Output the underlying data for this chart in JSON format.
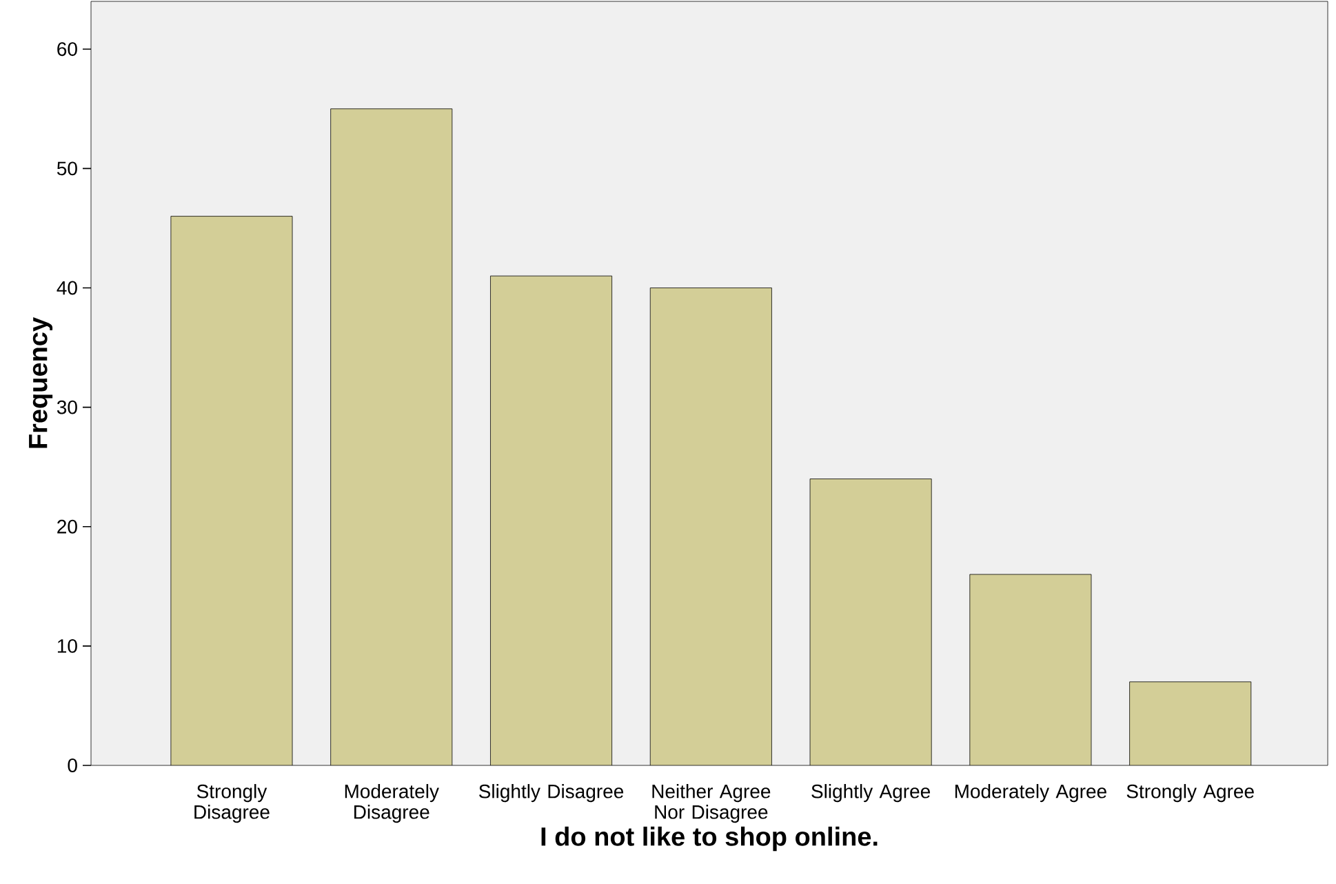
{
  "chart_data": {
    "type": "bar",
    "xlabel": "I do not like to shop online.",
    "ylabel": "Frequency",
    "categories": [
      "Strongly Disagree",
      "Moderately Disagree",
      "Slightly Disagree",
      "Neither Agree Nor Disagree",
      "Slightly Agree",
      "Moderately Agree",
      "Strongly Agree"
    ],
    "values": [
      46,
      55,
      41,
      40,
      24,
      16,
      7
    ],
    "color": "#d3ce97",
    "ylim": [
      0,
      64
    ],
    "yticks": [
      0,
      10,
      20,
      30,
      40,
      50,
      60
    ],
    "grid": false
  }
}
